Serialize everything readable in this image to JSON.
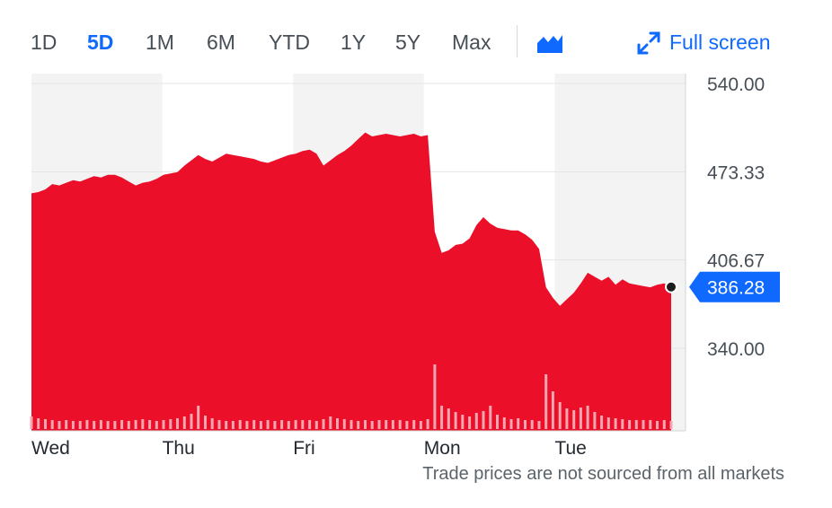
{
  "range_tabs": [
    {
      "label": "1D",
      "active": false
    },
    {
      "label": "5D",
      "active": true
    },
    {
      "label": "1M",
      "active": false
    },
    {
      "label": "6M",
      "active": false
    },
    {
      "label": "YTD",
      "active": false
    },
    {
      "label": "1Y",
      "active": false
    },
    {
      "label": "5Y",
      "active": false
    },
    {
      "label": "Max",
      "active": false
    }
  ],
  "chart_type_icon": "mountain-chart-icon",
  "fullscreen": {
    "label": "Full screen",
    "icon": "expand-arrows-icon"
  },
  "footnote": "Trade prices are not sourced from all markets",
  "colors": {
    "accent": "#0f69ff",
    "area_fill": "#eb0f29",
    "volume": "#f4a6b1",
    "shade": "#f3f3f3",
    "text": "#464e56"
  },
  "chart_data": {
    "type": "area",
    "days": [
      "Wed",
      "Thu",
      "Fri",
      "Mon",
      "Tue"
    ],
    "y_ticks": [
      "540.00",
      "473.33",
      "406.67",
      "340.00"
    ],
    "ylim": [
      340.0,
      540.0
    ],
    "last_price": 386.28,
    "last_price_label": "386.28",
    "grid": true,
    "shaded_days": [
      "Wed",
      "Fri",
      "Tue"
    ],
    "series": [
      {
        "values": [
          457,
          458,
          460,
          464,
          463,
          465,
          467,
          466,
          468,
          470,
          469,
          471,
          471,
          469,
          466,
          463,
          465,
          466,
          468,
          471,
          472,
          473,
          478,
          482,
          486,
          483,
          481,
          484,
          487,
          486,
          485,
          484,
          483,
          481,
          480,
          482,
          484,
          486,
          487,
          489,
          490,
          487,
          478,
          482,
          486,
          489,
          493,
          498,
          503,
          500,
          501,
          502,
          501,
          500,
          501,
          502,
          500,
          501,
          428,
          412,
          414,
          418,
          419,
          423,
          433,
          439,
          434,
          431,
          430,
          429,
          429,
          426,
          422,
          415,
          386,
          378,
          372,
          377,
          382,
          389,
          397,
          394,
          391,
          394,
          388,
          392,
          389,
          388,
          387,
          386,
          388,
          389,
          386
        ]
      },
      {
        "name": "Volume",
        "values": [
          14,
          12,
          11,
          10,
          9,
          10,
          9,
          9,
          10,
          9,
          10,
          9,
          9,
          10,
          9,
          10,
          11,
          10,
          9,
          10,
          11,
          12,
          14,
          17,
          26,
          15,
          12,
          10,
          9,
          9,
          10,
          9,
          10,
          9,
          10,
          9,
          10,
          9,
          10,
          10,
          10,
          9,
          11,
          14,
          12,
          11,
          10,
          9,
          10,
          9,
          10,
          10,
          10,
          10,
          9,
          10,
          9,
          11,
          72,
          26,
          23,
          19,
          16,
          14,
          18,
          20,
          26,
          16,
          13,
          11,
          12,
          10,
          10,
          9,
          61,
          42,
          30,
          23,
          21,
          24,
          26,
          19,
          15,
          13,
          12,
          11,
          10,
          10,
          10,
          10,
          9,
          10,
          9
        ]
      }
    ]
  }
}
